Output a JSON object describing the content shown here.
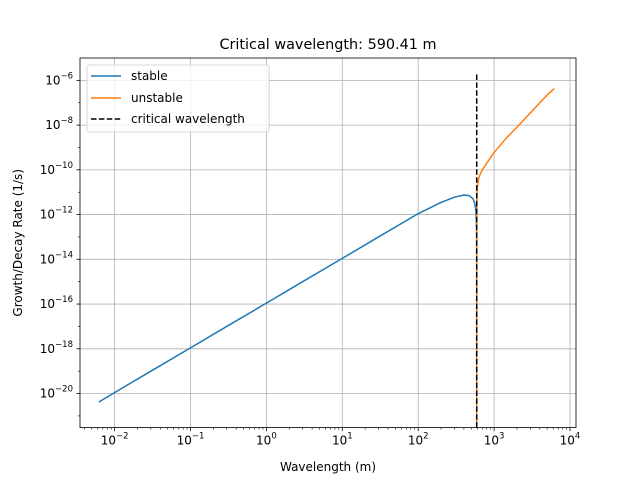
{
  "chart_data": {
    "type": "line",
    "title": "Critical wavelength: 590.41 m",
    "xlabel": "Wavelength (m)",
    "ylabel": "Growth/Decay Rate (1/s)",
    "xscale": "log",
    "yscale": "log",
    "xlim": [
      0.0035,
      12000
    ],
    "ylim": [
      3e-22,
      1e-05
    ],
    "grid": true,
    "legend_position": "top-left",
    "x_ticks": [
      {
        "value": 0.01,
        "mantissa": "10",
        "exponent": "−2"
      },
      {
        "value": 0.1,
        "mantissa": "10",
        "exponent": "−1"
      },
      {
        "value": 1,
        "mantissa": "10",
        "exponent": "0"
      },
      {
        "value": 10,
        "mantissa": "10",
        "exponent": "1"
      },
      {
        "value": 100,
        "mantissa": "10",
        "exponent": "2"
      },
      {
        "value": 1000,
        "mantissa": "10",
        "exponent": "3"
      },
      {
        "value": 10000,
        "mantissa": "10",
        "exponent": "4"
      }
    ],
    "y_ticks": [
      {
        "value": 1e-20,
        "mantissa": "10",
        "exponent": "−20"
      },
      {
        "value": 1e-18,
        "mantissa": "10",
        "exponent": "−18"
      },
      {
        "value": 1e-16,
        "mantissa": "10",
        "exponent": "−16"
      },
      {
        "value": 1e-14,
        "mantissa": "10",
        "exponent": "−14"
      },
      {
        "value": 1e-12,
        "mantissa": "10",
        "exponent": "−12"
      },
      {
        "value": 1e-10,
        "mantissa": "10",
        "exponent": "−10"
      },
      {
        "value": 1e-08,
        "mantissa": "10",
        "exponent": "−8"
      },
      {
        "value": 1e-06,
        "mantissa": "10",
        "exponent": "−6"
      }
    ],
    "series": [
      {
        "name": "stable",
        "color": "#1f77b4",
        "style": "solid",
        "points": [
          [
            0.0062,
            4.2e-21
          ],
          [
            0.01,
            1.1e-20
          ],
          [
            0.03,
            1e-19
          ],
          [
            0.1,
            1.1e-18
          ],
          [
            0.3,
            1e-17
          ],
          [
            1,
            1.1e-16
          ],
          [
            3,
            1e-15
          ],
          [
            10,
            1.1e-14
          ],
          [
            30,
            1e-13
          ],
          [
            100,
            1.1e-12
          ],
          [
            200,
            3.5e-12
          ],
          [
            300,
            6e-12
          ],
          [
            400,
            7.5e-12
          ],
          [
            470,
            7e-12
          ],
          [
            530,
            5e-12
          ],
          [
            560,
            2.8e-12
          ],
          [
            575,
            1.5e-12
          ],
          [
            583,
            6e-13
          ],
          [
            588,
            1.5e-13
          ],
          [
            590,
            1e-14
          ],
          [
            590.3,
            3e-22
          ]
        ]
      },
      {
        "name": "unstable",
        "color": "#ff7f0e",
        "style": "solid",
        "points": [
          [
            590.5,
            3e-22
          ],
          [
            590.8,
            1e-13
          ],
          [
            592,
            4e-12
          ],
          [
            600,
            1.5e-11
          ],
          [
            620,
            3.5e-11
          ],
          [
            650,
            6e-11
          ],
          [
            700,
            1e-10
          ],
          [
            800,
            2e-10
          ],
          [
            1000,
            6e-10
          ],
          [
            1500,
            3e-09
          ],
          [
            2000,
            8e-09
          ],
          [
            3000,
            3.5e-08
          ],
          [
            4000,
            1e-07
          ],
          [
            5000,
            2.2e-07
          ],
          [
            6200,
            4.3e-07
          ]
        ]
      },
      {
        "name": "critical wavelength",
        "color": "#000000",
        "style": "dashed",
        "points": [
          [
            590.41,
            3e-22
          ],
          [
            590.41,
            2e-06
          ]
        ]
      }
    ]
  }
}
